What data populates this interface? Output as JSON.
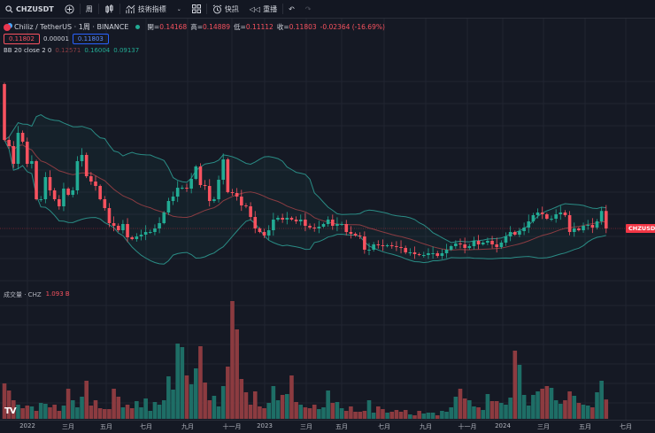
{
  "toolbar": {
    "symbol": "CHZUSDT",
    "interval": "周",
    "indicators_label": "技術指標",
    "alert_label": "快訊",
    "replay_label": "重播"
  },
  "legend": {
    "title": "Chiliz / TetherUS · 1周 · BINANCE",
    "open_label": "開=",
    "open": "0.14168",
    "high_label": "高=",
    "high": "0.14889",
    "low_label": "低=",
    "low": "0.11112",
    "close_label": "收=",
    "close": "0.11803",
    "change": "-0.02364 (-16.69%)",
    "bid": "0.11802",
    "spread": "0.00001",
    "ask": "0.11803",
    "bb_label": "BB 20 close 2 0",
    "bb_basis": "0.12571",
    "bb_upper": "0.16004",
    "bb_lower": "0.09137"
  },
  "volume": {
    "label": "成交量 · CHZ",
    "value": "1.093 B"
  },
  "price_tag": "CHZUSDT",
  "time_axis": [
    "2022",
    "三月",
    "五月",
    "七月",
    "九月",
    "十一月",
    "2023",
    "三月",
    "五月",
    "七月",
    "九月",
    "十一月",
    "2024",
    "三月",
    "五月",
    "七月"
  ],
  "colors": {
    "up": "#22ab94",
    "down": "#f7525f",
    "band": "#2a8c85",
    "basis": "#8a3c42",
    "background": "#151924"
  },
  "chart_data": {
    "type": "candlestick",
    "interval": "1 week",
    "symbol": "CHZUSDT",
    "first_open": 0.3136,
    "closes": [
      0.238,
      0.2296,
      0.2056,
      0.2476,
      0.2356,
      0.2056,
      0.2092,
      0.1576,
      0.1576,
      0.1876,
      0.1696,
      0.1576,
      0.148,
      0.172,
      0.1636,
      0.1696,
      0.2092,
      0.2176,
      0.1888,
      0.1816,
      0.1756,
      0.1576,
      0.1456,
      0.1252,
      0.1216,
      0.1156,
      0.124,
      0.106,
      0.1036,
      0.1072,
      0.1096,
      0.1132,
      0.1132,
      0.118,
      0.1252,
      0.1396,
      0.1552,
      0.1612,
      0.1732,
      0.1732,
      0.172,
      0.1852,
      0.202,
      0.1768,
      0.1756,
      0.1552,
      0.1576,
      0.184,
      0.2116,
      0.1672,
      0.166,
      0.1612,
      0.1492,
      0.148,
      0.1336,
      0.118,
      0.1132,
      0.1084,
      0.1156,
      0.13,
      0.1324,
      0.13,
      0.1324,
      0.13,
      0.1276,
      0.13,
      0.1216,
      0.1192,
      0.118,
      0.1204,
      0.124,
      0.13,
      0.1216,
      0.124,
      0.124,
      0.1132,
      0.1108,
      0.1084,
      0.1072,
      0.0892,
      0.0892,
      0.0964,
      0.0952,
      0.094,
      0.0952,
      0.094,
      0.0928,
      0.0916,
      0.0856,
      0.0856,
      0.0832,
      0.082,
      0.082,
      0.0844,
      0.0844,
      0.0808,
      0.0844,
      0.0892,
      0.094,
      0.0976,
      0.0964,
      0.0916,
      0.094,
      0.1012,
      0.0964,
      0.0988,
      0.1012,
      0.0964,
      0.0928,
      0.0988,
      0.1072,
      0.1132,
      0.1096,
      0.1144,
      0.1192,
      0.1276,
      0.136,
      0.1396,
      0.1372,
      0.1312,
      0.1312,
      0.1372,
      0.1396,
      0.136,
      0.1132,
      0.118,
      0.1156,
      0.1216,
      0.1228,
      0.1192,
      0.1276,
      0.1417,
      0.118
    ],
    "volumes_B": [
      2.0,
      1.6,
      1.05,
      0.8,
      0.6,
      0.75,
      0.7,
      0.45,
      0.9,
      0.85,
      0.65,
      0.8,
      0.45,
      0.75,
      1.7,
      1.05,
      0.65,
      1.25,
      2.15,
      0.75,
      1.05,
      0.6,
      0.55,
      0.55,
      1.7,
      1.25,
      0.65,
      0.8,
      0.6,
      1.0,
      0.65,
      1.15,
      0.45,
      0.95,
      0.8,
      1.05,
      2.4,
      1.65,
      4.25,
      4.05,
      2.45,
      1.95,
      2.85,
      4.1,
      2.05,
      1.05,
      1.3,
      0.7,
      1.85,
      2.95,
      6.65,
      5.05,
      2.25,
      1.5,
      0.8,
      1.55,
      0.7,
      0.6,
      0.9,
      1.85,
      1.05,
      1.35,
      1.4,
      2.45,
      0.95,
      0.8,
      0.65,
      0.6,
      0.8,
      0.55,
      0.65,
      1.6,
      0.9,
      0.95,
      0.6,
      0.45,
      0.7,
      0.4,
      0.4,
      0.45,
      1.05,
      0.35,
      0.7,
      0.55,
      0.35,
      0.4,
      0.5,
      0.4,
      0.5,
      0.25,
      0.2,
      0.45,
      0.3,
      0.35,
      0.35,
      0.2,
      0.45,
      0.4,
      0.65,
      1.25,
      1.7,
      1.15,
      1.05,
      0.7,
      0.65,
      0.5,
      1.4,
      1.0,
      1.0,
      0.9,
      0.8,
      1.2,
      3.85,
      3.05,
      1.35,
      0.75,
      1.35,
      1.55,
      1.7,
      1.85,
      1.75,
      1.05,
      0.85,
      1.05,
      1.55,
      1.3,
      0.9,
      0.8,
      0.75,
      0.65,
      1.5,
      2.15,
      1.093
    ],
    "indicator": {
      "name": "Bollinger Bands",
      "length": 20,
      "source": "close",
      "stddev": 2,
      "offset": 0
    },
    "x_start": "2021-12",
    "x_end": "2024-06",
    "grid": true
  }
}
